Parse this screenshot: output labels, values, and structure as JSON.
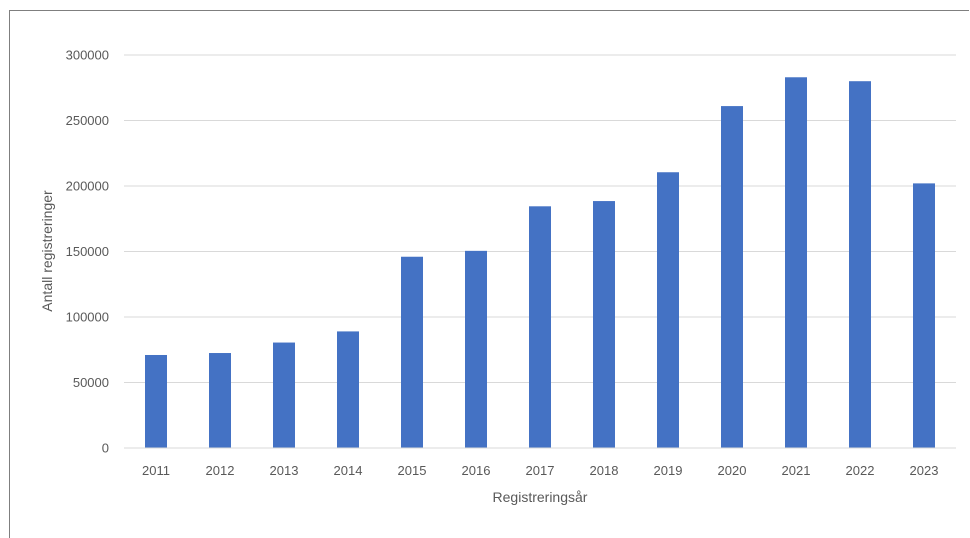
{
  "chart_data": {
    "type": "bar",
    "categories": [
      "2011",
      "2012",
      "2013",
      "2014",
      "2015",
      "2016",
      "2017",
      "2018",
      "2019",
      "2020",
      "2021",
      "2022",
      "2023"
    ],
    "values": [
      71000,
      72500,
      80500,
      89000,
      146000,
      150500,
      184500,
      188500,
      210500,
      261000,
      283000,
      280000,
      202000
    ],
    "xlabel": "Registreringsår",
    "ylabel": "Antall registreringer",
    "ylim": [
      0,
      300000
    ],
    "yticks": [
      "0",
      "50000",
      "100000",
      "150000",
      "200000",
      "250000",
      "300000"
    ],
    "grid": true,
    "legend": "none",
    "bar_color": "#4472c4",
    "grid_color": "#d9d9d9"
  }
}
